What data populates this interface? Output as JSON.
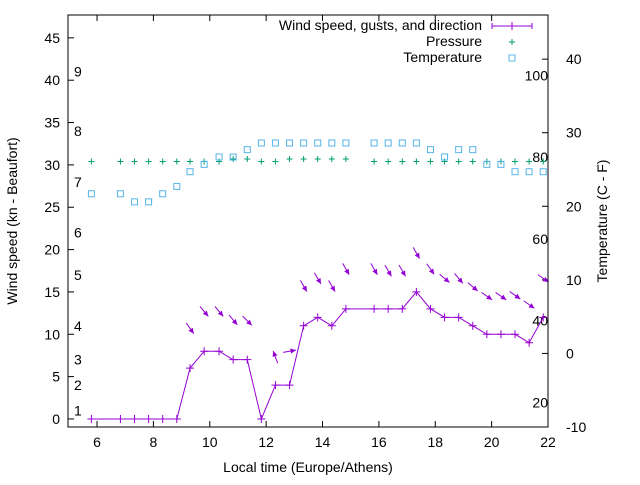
{
  "chart_data": {
    "type": "line",
    "title": "",
    "xlabel": "Local time (Europe/Athens)",
    "ylabel": "Wind speed (kn - Beaufort)",
    "y2label": "Temperature (C - F)",
    "xlim": [
      4.97,
      22
    ],
    "ylim": [
      -0.95,
      47.7
    ],
    "y2lim": [
      -10,
      46
    ],
    "xticks": [
      6,
      8,
      10,
      12,
      14,
      16,
      18,
      20,
      22
    ],
    "yticks": [
      0,
      5,
      10,
      15,
      20,
      25,
      30,
      35,
      40,
      45
    ],
    "y2ticks": [
      -10,
      0,
      10,
      20,
      30,
      40
    ],
    "beaufort_labels": [
      {
        "label": "1",
        "knots": 1
      },
      {
        "label": "2",
        "knots": 4
      },
      {
        "label": "3",
        "knots": 7
      },
      {
        "label": "4",
        "knots": 11
      },
      {
        "label": "5",
        "knots": 17
      },
      {
        "label": "6",
        "knots": 22
      },
      {
        "label": "7",
        "knots": 28
      },
      {
        "label": "8",
        "knots": 34
      },
      {
        "label": "9",
        "knots": 41
      }
    ],
    "fahrenheit_labels": [
      {
        "label": "20",
        "f": 20
      },
      {
        "label": "40",
        "f": 40
      },
      {
        "label": "60",
        "f": 60
      },
      {
        "label": "80",
        "f": 80
      },
      {
        "label": "100",
        "f": 100
      }
    ],
    "legend": {
      "placement": "top-right",
      "entries": [
        "Wind speed, gusts, and direction",
        "Pressure",
        "Temperature"
      ]
    },
    "x": [
      5.8,
      6.83,
      7.33,
      7.83,
      8.33,
      8.83,
      9.3,
      9.8,
      10.33,
      10.83,
      11.33,
      11.83,
      12.33,
      12.83,
      13.33,
      13.83,
      14.33,
      14.83,
      15.83,
      16.33,
      16.83,
      17.33,
      17.83,
      18.33,
      18.83,
      19.33,
      19.83,
      20.33,
      20.83,
      21.33,
      21.83
    ],
    "series": [
      {
        "name": "Wind speed",
        "axis": "y",
        "color": "#9400d3",
        "values": [
          0,
          0,
          0,
          0,
          0,
          0,
          6,
          8,
          8,
          7,
          7,
          0,
          4,
          4,
          11,
          12,
          11,
          13,
          13,
          13,
          13,
          15,
          13,
          12,
          12,
          11,
          10,
          10,
          10,
          9,
          12
        ]
      },
      {
        "name": "Gusts",
        "axis": "y",
        "color": "#9400d3",
        "values": [
          null,
          null,
          null,
          null,
          null,
          null,
          10.7,
          12.7,
          12.7,
          11.7,
          11.6,
          null,
          7.3,
          8,
          15.7,
          16.6,
          15.7,
          17.7,
          17.7,
          17.5,
          17.5,
          19.6,
          17.7,
          16.6,
          16.6,
          15.6,
          14.5,
          14.5,
          14.6,
          13.5,
          16.6
        ]
      },
      {
        "name": "Wind direction (from, deg)",
        "axis": "none",
        "values": [
          null,
          null,
          null,
          null,
          null,
          null,
          325,
          320,
          320,
          320,
          315,
          null,
          160,
          260,
          330,
          330,
          330,
          330,
          330,
          330,
          330,
          330,
          325,
          310,
          320,
          310,
          305,
          305,
          305,
          305,
          305
        ]
      },
      {
        "name": "Pressure",
        "axis": "y",
        "color": "#009e73",
        "values": [
          30.4,
          30.4,
          30.4,
          30.4,
          30.4,
          30.4,
          30.4,
          30.4,
          30.4,
          30.7,
          30.7,
          30.4,
          30.4,
          30.7,
          30.7,
          30.7,
          30.7,
          30.7,
          30.4,
          30.4,
          30.4,
          30.4,
          30.4,
          30.4,
          30.4,
          30.4,
          30.4,
          30.4,
          30.4,
          30.4,
          30.4
        ]
      },
      {
        "name": "Temperature",
        "axis": "y2",
        "color": "#56b4e9",
        "values": [
          21.7,
          21.7,
          20.6,
          20.6,
          21.7,
          22.7,
          24.7,
          25.7,
          26.7,
          26.7,
          27.7,
          28.6,
          28.6,
          28.6,
          28.6,
          28.6,
          28.6,
          28.6,
          28.6,
          28.6,
          28.6,
          28.6,
          27.7,
          26.7,
          27.7,
          27.7,
          25.7,
          25.7,
          24.7,
          24.7,
          24.7
        ]
      }
    ],
    "grid": false
  }
}
